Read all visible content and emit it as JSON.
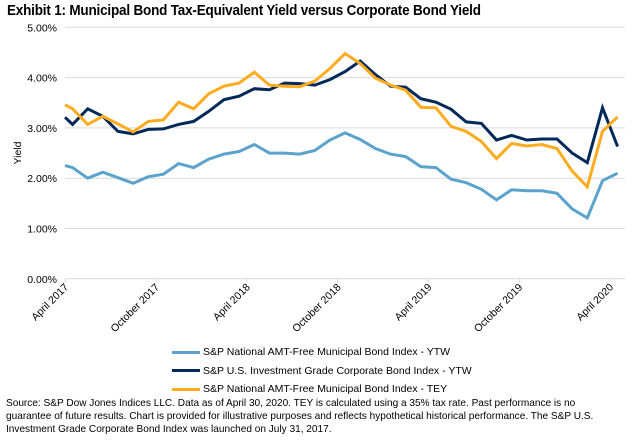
{
  "chart_data": {
    "type": "line",
    "title": "Exhibit 1: Municipal Bond Tax-Equivalent Yield versus Corporate Bond Yield",
    "xlabel": "",
    "ylabel": "Yield",
    "ylim": [
      0,
      5
    ],
    "y_ticks": [
      0,
      1,
      2,
      3,
      4,
      5
    ],
    "y_tick_labels": [
      "0.00%",
      "1.00%",
      "2.00%",
      "3.00%",
      "4.00%",
      "5.00%"
    ],
    "x_ticks": [
      0,
      6,
      12,
      18,
      24,
      30,
      36
    ],
    "x_tick_labels": [
      "April 2017",
      "October 2017",
      "April 2018",
      "October 2018",
      "April 2019",
      "October 2019",
      "April 2020"
    ],
    "x_unit": "months since April 2017",
    "xlim": [
      0,
      37
    ],
    "grid": true,
    "legend_position": "bottom",
    "x": [
      0,
      0.5,
      1.5,
      2.5,
      3.5,
      4.5,
      5.5,
      6.5,
      7.5,
      8.5,
      9.5,
      10.5,
      11.5,
      12.5,
      13.5,
      14.5,
      15.5,
      16.5,
      17.5,
      18.5,
      19.5,
      20.5,
      21.5,
      22.5,
      23.5,
      24.5,
      25.5,
      26.5,
      27.5,
      28.5,
      29.5,
      30.5,
      31.5,
      32.5,
      33.5,
      34.5,
      35.5,
      36.5
    ],
    "series": [
      {
        "name": "S&P National AMT-Free Municipal Bond Index - YTW",
        "color": "#5BA3CC",
        "values": [
          2.25,
          2.21,
          2.0,
          2.12,
          2.01,
          1.9,
          2.03,
          2.08,
          2.29,
          2.21,
          2.38,
          2.48,
          2.53,
          2.67,
          2.5,
          2.5,
          2.48,
          2.55,
          2.76,
          2.9,
          2.77,
          2.59,
          2.48,
          2.43,
          2.23,
          2.21,
          1.98,
          1.91,
          1.78,
          1.57,
          1.77,
          1.75,
          1.75,
          1.7,
          1.39,
          1.21,
          1.95,
          2.1
        ]
      },
      {
        "name": "S&P U.S. Investment Grade Corporate Bond Index - YTW",
        "color": "#00295A",
        "values": [
          3.21,
          3.07,
          3.38,
          3.23,
          2.93,
          2.88,
          2.97,
          2.98,
          3.07,
          3.13,
          3.33,
          3.56,
          3.63,
          3.78,
          3.76,
          3.89,
          3.88,
          3.85,
          3.96,
          4.12,
          4.33,
          4.06,
          3.83,
          3.81,
          3.58,
          3.51,
          3.37,
          3.12,
          3.09,
          2.76,
          2.85,
          2.76,
          2.78,
          2.78,
          2.5,
          2.31,
          3.4,
          2.63
        ]
      },
      {
        "name": "S&P National AMT-Free Municipal Bond Index - TEY",
        "color": "#FFAB1F",
        "values": [
          3.46,
          3.38,
          3.07,
          3.23,
          3.08,
          2.92,
          3.13,
          3.16,
          3.51,
          3.38,
          3.68,
          3.83,
          3.89,
          4.11,
          3.85,
          3.83,
          3.82,
          3.93,
          4.18,
          4.48,
          4.28,
          3.99,
          3.85,
          3.75,
          3.41,
          3.4,
          3.03,
          2.93,
          2.73,
          2.39,
          2.69,
          2.64,
          2.67,
          2.59,
          2.14,
          1.83,
          2.93,
          3.22
        ]
      }
    ]
  },
  "footer": "Source: S&P Dow Jones Indices LLC. Data as of April 30, 2020. TEY is calculated using a 35% tax rate. Past performance is no guarantee of future results. Chart is provided for illustrative purposes and reflects hypothetical historical performance. The S&P U.S. Investment Grade Corporate Bond Index was launched on July 31, 2017."
}
